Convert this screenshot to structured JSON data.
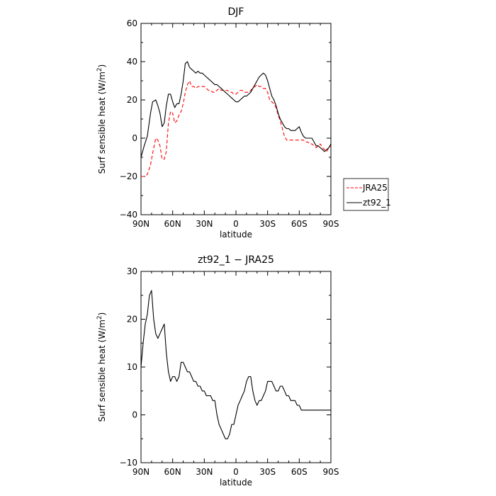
{
  "chart_data": [
    {
      "type": "line",
      "title": "DJF",
      "xlabel": "latitude",
      "ylabel": "Surf sensible heat (W/m²)",
      "ylabel_main": "Surf sensible heat (W/m",
      "ylabel_sup": "2",
      "ylabel_end": ")",
      "xlim": [
        -90,
        90
      ],
      "ylim": [
        -40,
        60
      ],
      "xticks": [
        -90,
        -60,
        -30,
        0,
        30,
        60,
        90
      ],
      "xtick_labels": [
        "90N",
        "60N",
        "30N",
        "0",
        "30S",
        "60S",
        "90S"
      ],
      "yticks": [
        -40,
        -20,
        0,
        20,
        40,
        60
      ],
      "ytick_labels": [
        "−40",
        "−20",
        "0",
        "20",
        "40",
        "60"
      ],
      "legend_position": "right",
      "series": [
        {
          "name": "JRA25",
          "color": "#ff0000",
          "style": "dashed",
          "x": [
            -90,
            -87,
            -84,
            -81,
            -79,
            -76,
            -74,
            -72,
            -70,
            -68,
            -66,
            -64,
            -62,
            -60,
            -58,
            -56,
            -54,
            -52,
            -50,
            -48,
            -46,
            -44,
            -42,
            -40,
            -38,
            -36,
            -34,
            -32,
            -30,
            -28,
            -26,
            -24,
            -22,
            -20,
            -18,
            -16,
            -14,
            -12,
            -10,
            -8,
            -6,
            -4,
            -2,
            0,
            2,
            4,
            6,
            8,
            10,
            12,
            14,
            16,
            18,
            20,
            22,
            24,
            26,
            28,
            30,
            32,
            34,
            36,
            38,
            40,
            42,
            44,
            46,
            48,
            50,
            52,
            54,
            56,
            58,
            60,
            62,
            64,
            66,
            68,
            70,
            72,
            74,
            76,
            78,
            80,
            82,
            84,
            86,
            88,
            90
          ],
          "y": [
            -20,
            -20,
            -19,
            -14,
            -8,
            0,
            -1,
            -4,
            -11,
            -11,
            -7,
            8,
            14,
            13,
            8,
            9,
            12,
            14,
            18,
            24,
            28,
            30,
            27,
            27,
            26,
            27,
            27,
            27,
            27,
            26,
            25,
            25,
            24,
            24,
            25,
            26,
            25,
            25,
            25,
            25,
            24,
            24,
            23,
            23,
            24,
            25,
            25,
            24,
            24,
            24,
            25,
            26,
            27,
            28,
            27,
            27,
            26,
            26,
            24,
            20,
            19,
            18,
            16,
            12,
            9,
            5,
            1,
            -1,
            -1,
            -1,
            -1,
            -1,
            -1,
            -1,
            -1,
            -1,
            -2,
            -2,
            -3,
            -3,
            -4,
            -5,
            -4,
            -3,
            -5,
            -6,
            -7,
            -5,
            -4
          ]
        },
        {
          "name": "zt92_1",
          "color": "#000000",
          "style": "solid",
          "x": [
            -90,
            -87,
            -84,
            -81,
            -79,
            -76,
            -74,
            -72,
            -70,
            -68,
            -66,
            -64,
            -62,
            -60,
            -58,
            -56,
            -54,
            -52,
            -50,
            -48,
            -46,
            -44,
            -42,
            -40,
            -38,
            -36,
            -34,
            -32,
            -30,
            -28,
            -26,
            -24,
            -22,
            -20,
            -18,
            -16,
            -14,
            -12,
            -10,
            -8,
            -6,
            -4,
            -2,
            0,
            2,
            4,
            6,
            8,
            10,
            12,
            14,
            16,
            18,
            20,
            22,
            24,
            26,
            28,
            30,
            32,
            34,
            36,
            38,
            40,
            42,
            44,
            46,
            48,
            50,
            52,
            54,
            56,
            58,
            60,
            62,
            64,
            66,
            68,
            70,
            72,
            74,
            76,
            78,
            80,
            82,
            84,
            86,
            88,
            90
          ],
          "y": [
            -10,
            -4,
            1,
            13,
            19,
            20,
            17,
            13,
            6,
            8,
            17,
            23,
            23,
            19,
            16,
            18,
            18,
            23,
            30,
            39,
            40,
            37,
            36,
            35,
            34,
            35,
            34,
            34,
            33,
            32,
            31,
            30,
            29,
            28,
            28,
            27,
            26,
            25,
            24,
            23,
            22,
            21,
            20,
            19,
            19,
            20,
            21,
            22,
            22,
            23,
            24,
            26,
            28,
            30,
            32,
            33,
            34,
            33,
            30,
            26,
            22,
            20,
            17,
            13,
            10,
            8,
            6,
            5,
            5,
            4,
            4,
            4,
            5,
            6,
            3,
            1,
            0,
            0,
            0,
            0,
            -2,
            -4,
            -4,
            -5,
            -6,
            -7,
            -6,
            -5,
            -3
          ]
        }
      ]
    },
    {
      "type": "line",
      "title": "zt92_1 − JRA25",
      "xlabel": "latitude",
      "ylabel": "Surf sensible heat (W/m²)",
      "ylabel_main": "Surf sensible heat (W/m",
      "ylabel_sup": "2",
      "ylabel_end": ")",
      "xlim": [
        -90,
        90
      ],
      "ylim": [
        -10,
        30
      ],
      "xticks": [
        -90,
        -60,
        -30,
        0,
        30,
        60,
        90
      ],
      "xtick_labels": [
        "90N",
        "60N",
        "30N",
        "0",
        "30S",
        "60S",
        "90S"
      ],
      "yticks": [
        -10,
        0,
        10,
        20,
        30
      ],
      "ytick_labels": [
        "−10",
        "0",
        "10",
        "20",
        "30"
      ],
      "series": [
        {
          "name": "zt92_1 − JRA25",
          "color": "#000000",
          "style": "solid",
          "x": [
            -90,
            -88,
            -86,
            -84,
            -82,
            -80,
            -78,
            -76,
            -74,
            -72,
            -70,
            -68,
            -66,
            -64,
            -62,
            -60,
            -58,
            -56,
            -54,
            -52,
            -50,
            -48,
            -46,
            -44,
            -42,
            -40,
            -38,
            -36,
            -34,
            -32,
            -30,
            -28,
            -26,
            -24,
            -22,
            -20,
            -18,
            -16,
            -14,
            -12,
            -10,
            -8,
            -6,
            -4,
            -2,
            0,
            2,
            4,
            6,
            8,
            10,
            12,
            14,
            16,
            18,
            20,
            22,
            24,
            26,
            28,
            30,
            32,
            34,
            36,
            38,
            40,
            42,
            44,
            46,
            48,
            50,
            52,
            54,
            56,
            58,
            60,
            62,
            64,
            66,
            68,
            70,
            72,
            74,
            76,
            78,
            80,
            82,
            84,
            86,
            88,
            90
          ],
          "y": [
            10,
            15,
            19,
            21,
            25,
            26,
            20,
            17,
            16,
            17,
            18,
            19,
            13,
            9,
            7,
            8,
            8,
            7,
            8,
            11,
            11,
            10,
            9,
            9,
            8,
            7,
            7,
            6,
            6,
            5,
            5,
            4,
            4,
            4,
            3,
            3,
            0,
            -2,
            -3,
            -4,
            -5,
            -5,
            -4,
            -2,
            -2,
            0,
            2,
            3,
            4,
            5,
            7,
            8,
            8,
            5,
            3,
            2,
            3,
            3,
            4,
            5,
            7,
            7,
            7,
            6,
            5,
            5,
            6,
            6,
            5,
            4,
            4,
            3,
            3,
            3,
            2,
            2,
            1,
            1,
            1,
            1,
            1,
            1,
            1,
            1,
            1,
            1,
            1,
            1,
            1,
            1,
            1
          ]
        }
      ]
    }
  ]
}
